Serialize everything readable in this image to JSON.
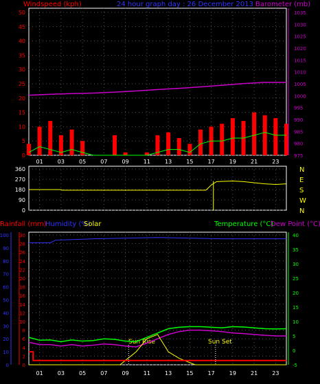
{
  "header": {
    "windspeed_label": "Windspeed (kph)",
    "date_label": "24 hour graph day : 26 December 2013",
    "barometer_label": "Barometer (mb)"
  },
  "bottom_header": {
    "rainfall_label": "Rainfall (mm)",
    "humidity_label": "Humidity (%)",
    "solar_label": "Solar",
    "temperature_label": "Temperature (°C)",
    "dewpoint_label": "Dew Point (°C)"
  },
  "annotations": {
    "sunrise": "Sun Rise",
    "sunset": "Sun Set"
  },
  "colors": {
    "wind": "#ff0000",
    "gust": "#ff0000",
    "avg_wind": "#00ff00",
    "barometer": "#cc00cc",
    "direction": "#ffff00",
    "rain": "#ff0000",
    "humidity": "#3333ff",
    "solar": "#ffff00",
    "temperature": "#00ff00",
    "dewpoint": "#cc00cc",
    "axis_wind": "#ff0000",
    "axis_baro": "#cc00cc",
    "axis_temp": "#00ff00",
    "axis_hum": "#3333ff"
  },
  "chart_data": [
    {
      "type": "line",
      "panel": "wind-barometer",
      "x_ticks": [
        "01",
        "03",
        "05",
        "07",
        "09",
        "11",
        "13",
        "15",
        "17",
        "19",
        "21",
        "23"
      ],
      "ylim_left": [
        0,
        50
      ],
      "yticks_left": [
        0,
        5,
        10,
        15,
        20,
        25,
        30,
        35,
        40,
        45,
        50
      ],
      "ylim_right": [
        975,
        1035
      ],
      "yticks_right": [
        975,
        980,
        985,
        990,
        995,
        1000,
        1005,
        1010,
        1015,
        1020,
        1025,
        1030,
        1035
      ],
      "series": [
        {
          "name": "Barometer (mb)",
          "axis": "right",
          "x": [
            0,
            2,
            4,
            6,
            8,
            10,
            12,
            14,
            16,
            18,
            20,
            22,
            24
          ],
          "values": [
            1000.2,
            1000.6,
            1000.9,
            1001.1,
            1001.5,
            1002.0,
            1002.6,
            1003.1,
            1003.7,
            1004.4,
            1005.1,
            1005.6,
            1005.6
          ]
        },
        {
          "name": "Windspeed (kph)",
          "axis": "left",
          "x": [
            0,
            1,
            2,
            3,
            4,
            5,
            6,
            7,
            8,
            9,
            10,
            11,
            12,
            13,
            14,
            15,
            16,
            17,
            18,
            19,
            20,
            21,
            22,
            23,
            24
          ],
          "values": [
            4,
            10,
            12,
            7,
            9,
            5,
            0,
            0,
            7,
            1,
            0,
            1,
            7,
            8,
            6,
            4,
            9,
            10,
            11,
            13,
            12,
            15,
            14,
            13,
            11
          ]
        },
        {
          "name": "Average",
          "axis": "left",
          "x": [
            0,
            1,
            2,
            3,
            4,
            5,
            6,
            7,
            8,
            9,
            10,
            11,
            12,
            13,
            14,
            15,
            16,
            17,
            18,
            19,
            20,
            21,
            22,
            23,
            24
          ],
          "values": [
            1,
            3,
            2,
            1,
            2,
            1,
            0,
            0,
            0,
            0,
            0,
            0,
            1,
            2,
            2,
            1,
            4,
            5,
            5,
            6,
            6,
            7,
            8,
            7,
            7
          ]
        }
      ],
      "grid": true
    },
    {
      "type": "line",
      "panel": "wind-direction",
      "ylim": [
        0,
        360
      ],
      "yticks": [
        0,
        90,
        180,
        270,
        360
      ],
      "direction_labels": [
        "N",
        "W",
        "S",
        "E",
        "N"
      ],
      "series": [
        {
          "name": "Direction",
          "x": [
            0,
            3,
            3.1,
            16.5,
            17,
            17.5,
            19,
            20,
            21,
            22,
            23,
            24
          ],
          "values": [
            180,
            180,
            175,
            175,
            220,
            250,
            255,
            250,
            240,
            230,
            225,
            230
          ]
        }
      ],
      "grid": true
    },
    {
      "type": "line",
      "panel": "rain-humidity-temperature",
      "x_ticks": [
        "01",
        "03",
        "05",
        "07",
        "09",
        "11",
        "13",
        "15",
        "17",
        "19",
        "21",
        "23"
      ],
      "ylim_rain": [
        0,
        30
      ],
      "yticks_rain": [
        0,
        2,
        4,
        6,
        8,
        10,
        12,
        14,
        16,
        18,
        20,
        22,
        24,
        26,
        28,
        30
      ],
      "ylim_humidity": [
        0,
        100
      ],
      "yticks_humidity": [
        0,
        10,
        20,
        30,
        40,
        50,
        60,
        70,
        80,
        90,
        100
      ],
      "ylim_temp": [
        -5,
        40
      ],
      "yticks_temp": [
        -5,
        0,
        5,
        10,
        15,
        20,
        25,
        30,
        35,
        40
      ],
      "series": [
        {
          "name": "Humidity (%)",
          "x": [
            0,
            2,
            2.5,
            6,
            12,
            18,
            24
          ],
          "values": [
            94,
            94,
            96,
            97,
            98,
            97,
            97
          ]
        },
        {
          "name": "Temperature (°C)",
          "x": [
            0,
            1,
            2,
            3,
            4,
            5,
            6,
            7,
            8,
            9,
            10,
            11,
            12,
            13,
            14,
            15,
            16,
            17,
            18,
            19,
            20,
            21,
            22,
            23,
            24
          ],
          "values": [
            4.5,
            3.5,
            3.6,
            3.0,
            3.6,
            3.2,
            3.4,
            4.0,
            3.8,
            3.2,
            3.0,
            4.5,
            6.0,
            7.5,
            8.0,
            8.2,
            8.2,
            8.0,
            7.8,
            8.2,
            8.1,
            7.8,
            7.5,
            7.4,
            7.5
          ]
        },
        {
          "name": "Dew Point (°C)",
          "x": [
            0,
            1,
            2,
            3,
            4,
            5,
            6,
            7,
            8,
            9,
            10,
            11,
            12,
            13,
            14,
            15,
            16,
            17,
            18,
            19,
            20,
            21,
            22,
            23,
            24
          ],
          "values": [
            2.8,
            2.0,
            2.0,
            1.5,
            2.0,
            1.5,
            1.8,
            2.2,
            2.0,
            1.5,
            1.2,
            2.5,
            4.0,
            5.5,
            6.5,
            7.0,
            7.0,
            6.8,
            6.5,
            6.0,
            5.8,
            5.5,
            5.2,
            5.0,
            5.0
          ]
        },
        {
          "name": "Solar",
          "x": [
            0,
            8.5,
            9,
            10,
            11,
            12,
            12.5,
            13,
            14,
            15,
            15.5,
            16,
            24
          ],
          "values": [
            0,
            0,
            1,
            3,
            6,
            7,
            5,
            3,
            1.5,
            0.5,
            0,
            0,
            0
          ]
        },
        {
          "name": "Rainfall (mm)",
          "x": [
            0,
            0.4,
            0.4,
            24
          ],
          "values": [
            3,
            3,
            1,
            1
          ]
        }
      ],
      "sunrise_hour": 9.3,
      "sunset_hour": 17.4,
      "grid": true
    }
  ]
}
